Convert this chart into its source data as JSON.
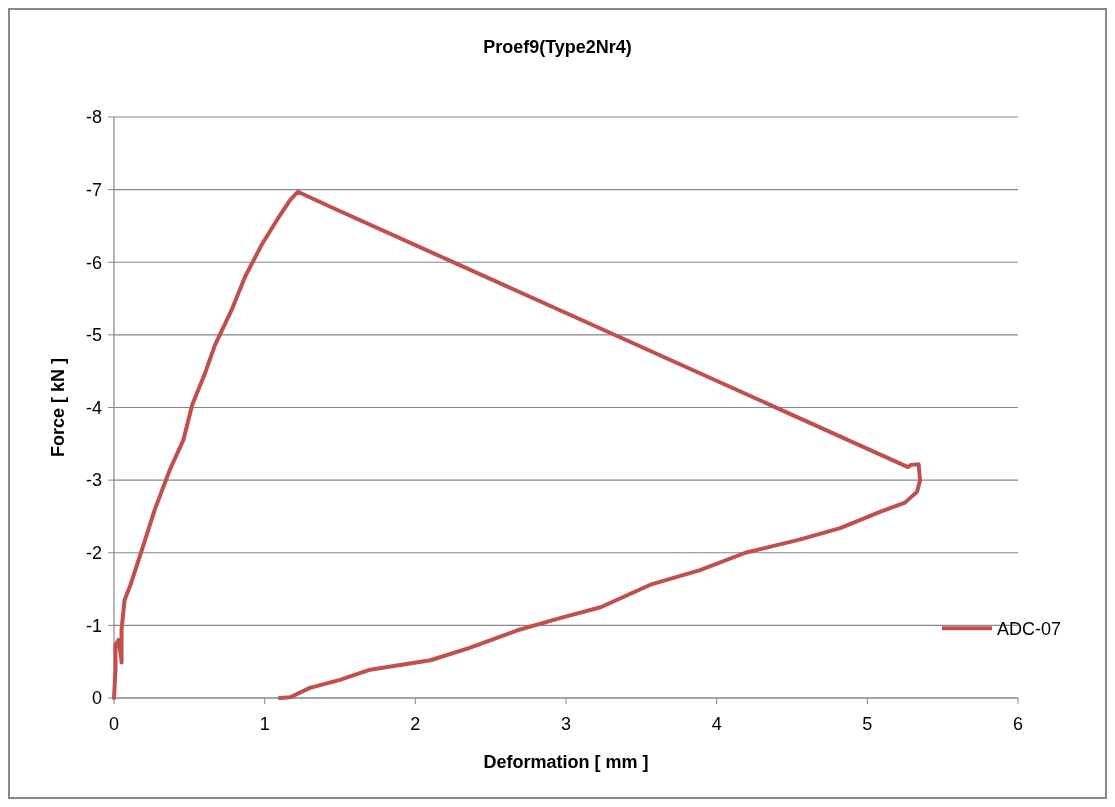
{
  "chart_data": {
    "type": "line",
    "title": "Proef9(Type2Nr4)",
    "xlabel": "Deformation [ mm ]",
    "ylabel": "Force [ kN ]",
    "xlim": [
      0,
      6
    ],
    "xticks": [
      0,
      1,
      2,
      3,
      4,
      5,
      6
    ],
    "ylim": [
      0,
      -8
    ],
    "yticks": [
      0,
      -1,
      -2,
      -3,
      -4,
      -5,
      -6,
      -7,
      -8
    ],
    "grid": "y",
    "legend": "right",
    "marker": "none",
    "line_style": "solid",
    "series": [
      {
        "name": "ADC-07",
        "color": "#c0504d",
        "x": [
          0,
          0.01,
          0.01,
          0.03,
          0.05,
          0.05,
          0.05,
          0.07,
          0.11,
          0.19,
          0.27,
          0.37,
          0.46,
          0.52,
          0.6,
          0.67,
          0.78,
          0.87,
          0.98,
          1.09,
          1.17,
          1.22,
          1.45,
          5.27,
          5.29,
          5.34,
          5.35,
          5.33,
          5.25,
          5.08,
          4.82,
          4.55,
          4.19,
          3.89,
          3.56,
          3.23,
          2.96,
          2.69,
          2.36,
          2.1,
          1.7,
          1.5,
          1.3,
          1.17,
          1.1
        ],
        "values": [
          0,
          -0.39,
          -0.73,
          -0.8,
          -0.52,
          -0.49,
          -0.94,
          -1.35,
          -1.56,
          -2.07,
          -2.59,
          -3.14,
          -3.55,
          -4.04,
          -4.45,
          -4.86,
          -5.34,
          -5.8,
          -6.24,
          -6.61,
          -6.86,
          -6.97,
          -6.75,
          -3.18,
          -3.21,
          -3.22,
          -3.0,
          -2.84,
          -2.69,
          -2.56,
          -2.34,
          -2.18,
          -2.0,
          -1.76,
          -1.56,
          -1.25,
          -1.1,
          -0.94,
          -0.69,
          -0.52,
          -0.39,
          -0.25,
          -0.14,
          -0.01,
          0
        ]
      }
    ]
  }
}
